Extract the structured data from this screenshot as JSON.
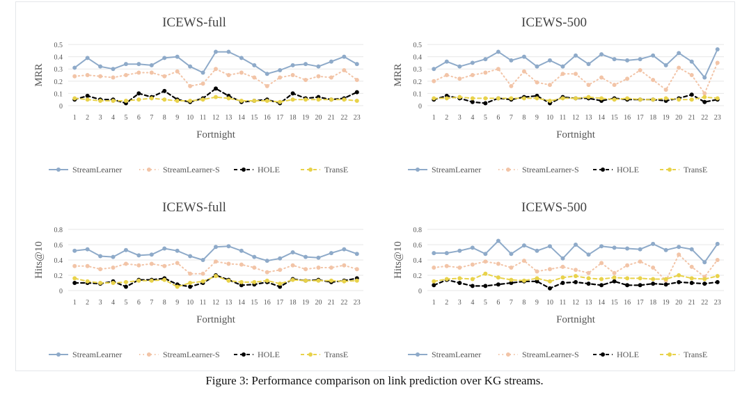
{
  "colors": {
    "streamlearner": "#8eaac9",
    "streamlearner_s": "#f2c4a7",
    "hole": "#000000",
    "transe": "#e8d24a",
    "grid": "#e7e7e7",
    "text": "#555555"
  },
  "caption": "Figure 3: Performance comparison on link prediction over KG streams.",
  "chart_data": [
    {
      "type": "line",
      "title": "ICEWS-full",
      "xlabel": "Fortnight",
      "ylabel": "MRR",
      "ylim": [
        0,
        0.5
      ],
      "yticks": [
        "0",
        "0.1",
        "0.2",
        "0.3",
        "0.4",
        "0.5"
      ],
      "categories": [
        "1",
        "2",
        "3",
        "4",
        "5",
        "6",
        "7",
        "8",
        "9",
        "10",
        "11",
        "12",
        "13",
        "14",
        "15",
        "16",
        "17",
        "18",
        "19",
        "20",
        "21",
        "22",
        "23"
      ],
      "legend_position": "bottom",
      "series": [
        {
          "name": "StreamLearner",
          "style": "solid",
          "values": [
            0.31,
            0.39,
            0.32,
            0.3,
            0.34,
            0.34,
            0.33,
            0.39,
            0.4,
            0.32,
            0.27,
            0.44,
            0.44,
            0.39,
            0.33,
            0.26,
            0.29,
            0.33,
            0.34,
            0.32,
            0.36,
            0.4,
            0.34
          ]
        },
        {
          "name": "StreamLearner-S",
          "style": "dotted",
          "values": [
            0.24,
            0.25,
            0.24,
            0.23,
            0.25,
            0.27,
            0.27,
            0.24,
            0.28,
            0.16,
            0.18,
            0.3,
            0.25,
            0.27,
            0.23,
            0.16,
            0.23,
            0.25,
            0.21,
            0.24,
            0.23,
            0.29,
            0.21
          ]
        },
        {
          "name": "HOLE",
          "style": "dashed",
          "values": [
            0.05,
            0.08,
            0.05,
            0.05,
            0.02,
            0.1,
            0.07,
            0.12,
            0.05,
            0.03,
            0.06,
            0.14,
            0.08,
            0.03,
            0.04,
            0.05,
            0.02,
            0.1,
            0.06,
            0.07,
            0.05,
            0.06,
            0.11
          ]
        },
        {
          "name": "TransE",
          "style": "dashed",
          "values": [
            0.06,
            0.05,
            0.04,
            0.04,
            0.04,
            0.05,
            0.06,
            0.05,
            0.04,
            0.04,
            0.05,
            0.07,
            0.06,
            0.04,
            0.04,
            0.04,
            0.03,
            0.05,
            0.05,
            0.05,
            0.05,
            0.05,
            0.04
          ]
        }
      ]
    },
    {
      "type": "line",
      "title": "ICEWS-500",
      "xlabel": "Fortnight",
      "ylabel": "MRR",
      "ylim": [
        0,
        0.5
      ],
      "yticks": [
        "0",
        "0.1",
        "0.2",
        "0.3",
        "0.4",
        "0.5"
      ],
      "categories": [
        "1",
        "2",
        "3",
        "4",
        "5",
        "6",
        "7",
        "8",
        "9",
        "10",
        "11",
        "12",
        "13",
        "14",
        "15",
        "16",
        "17",
        "18",
        "19",
        "20",
        "21",
        "22",
        "23"
      ],
      "legend_position": "bottom",
      "series": [
        {
          "name": "StreamLearner",
          "style": "solid",
          "values": [
            0.3,
            0.36,
            0.32,
            0.35,
            0.38,
            0.44,
            0.37,
            0.4,
            0.32,
            0.37,
            0.32,
            0.41,
            0.34,
            0.42,
            0.38,
            0.37,
            0.38,
            0.41,
            0.33,
            0.43,
            0.36,
            0.23,
            0.46
          ]
        },
        {
          "name": "StreamLearner-S",
          "style": "dotted",
          "values": [
            0.2,
            0.25,
            0.22,
            0.25,
            0.27,
            0.3,
            0.16,
            0.28,
            0.19,
            0.17,
            0.26,
            0.26,
            0.17,
            0.23,
            0.17,
            0.22,
            0.29,
            0.21,
            0.13,
            0.31,
            0.25,
            0.1,
            0.35
          ]
        },
        {
          "name": "HOLE",
          "style": "dashed",
          "values": [
            0.05,
            0.08,
            0.06,
            0.03,
            0.02,
            0.06,
            0.05,
            0.07,
            0.08,
            0.02,
            0.07,
            0.06,
            0.06,
            0.04,
            0.06,
            0.05,
            0.05,
            0.05,
            0.04,
            0.06,
            0.09,
            0.03,
            0.05
          ]
        },
        {
          "name": "TransE",
          "style": "dashed",
          "values": [
            0.06,
            0.06,
            0.07,
            0.06,
            0.06,
            0.06,
            0.06,
            0.06,
            0.06,
            0.04,
            0.06,
            0.06,
            0.07,
            0.06,
            0.05,
            0.06,
            0.05,
            0.05,
            0.06,
            0.05,
            0.05,
            0.07,
            0.06
          ]
        }
      ]
    },
    {
      "type": "line",
      "title": "ICEWS-full",
      "xlabel": "Fortnight",
      "ylabel": "Hits@10",
      "ylim": [
        0,
        0.8
      ],
      "yticks": [
        "0",
        "0.2",
        "0.4",
        "0.6",
        "0.8"
      ],
      "categories": [
        "1",
        "2",
        "3",
        "4",
        "5",
        "6",
        "7",
        "8",
        "9",
        "10",
        "11",
        "12",
        "13",
        "14",
        "15",
        "16",
        "17",
        "18",
        "19",
        "20",
        "21",
        "22",
        "23"
      ],
      "legend_position": "bottom",
      "series": [
        {
          "name": "StreamLearner",
          "style": "solid",
          "values": [
            0.52,
            0.54,
            0.45,
            0.44,
            0.53,
            0.46,
            0.47,
            0.55,
            0.52,
            0.45,
            0.4,
            0.57,
            0.58,
            0.52,
            0.44,
            0.39,
            0.42,
            0.5,
            0.44,
            0.43,
            0.49,
            0.54,
            0.48
          ]
        },
        {
          "name": "StreamLearner-S",
          "style": "dotted",
          "values": [
            0.32,
            0.32,
            0.28,
            0.3,
            0.35,
            0.33,
            0.35,
            0.32,
            0.36,
            0.22,
            0.22,
            0.38,
            0.35,
            0.34,
            0.3,
            0.24,
            0.27,
            0.33,
            0.28,
            0.3,
            0.3,
            0.33,
            0.28
          ]
        },
        {
          "name": "HOLE",
          "style": "dashed",
          "values": [
            0.1,
            0.1,
            0.09,
            0.12,
            0.05,
            0.14,
            0.14,
            0.16,
            0.08,
            0.05,
            0.1,
            0.2,
            0.14,
            0.07,
            0.08,
            0.11,
            0.05,
            0.15,
            0.13,
            0.14,
            0.11,
            0.13,
            0.16
          ]
        },
        {
          "name": "TransE",
          "style": "dashed",
          "values": [
            0.16,
            0.12,
            0.1,
            0.1,
            0.11,
            0.13,
            0.13,
            0.14,
            0.05,
            0.1,
            0.12,
            0.19,
            0.13,
            0.11,
            0.11,
            0.13,
            0.09,
            0.14,
            0.13,
            0.13,
            0.13,
            0.12,
            0.13
          ]
        }
      ]
    },
    {
      "type": "line",
      "title": "ICEWS-500",
      "xlabel": "Fortnight",
      "ylabel": "Hits@10",
      "ylim": [
        0,
        0.8
      ],
      "yticks": [
        "0",
        "0.2",
        "0.4",
        "0.6",
        "0.8"
      ],
      "categories": [
        "1",
        "2",
        "3",
        "4",
        "5",
        "6",
        "7",
        "8",
        "9",
        "10",
        "11",
        "12",
        "13",
        "14",
        "15",
        "16",
        "17",
        "18",
        "19",
        "20",
        "21",
        "22",
        "23"
      ],
      "legend_position": "bottom",
      "series": [
        {
          "name": "StreamLearner",
          "style": "solid",
          "values": [
            0.49,
            0.49,
            0.52,
            0.56,
            0.48,
            0.65,
            0.48,
            0.59,
            0.52,
            0.58,
            0.42,
            0.6,
            0.47,
            0.58,
            0.56,
            0.55,
            0.54,
            0.61,
            0.53,
            0.57,
            0.54,
            0.37,
            0.61
          ]
        },
        {
          "name": "StreamLearner-S",
          "style": "dotted",
          "values": [
            0.3,
            0.32,
            0.3,
            0.34,
            0.38,
            0.35,
            0.3,
            0.39,
            0.25,
            0.28,
            0.31,
            0.27,
            0.23,
            0.36,
            0.23,
            0.33,
            0.38,
            0.3,
            0.13,
            0.47,
            0.31,
            0.18,
            0.4
          ]
        },
        {
          "name": "HOLE",
          "style": "dashed",
          "values": [
            0.07,
            0.14,
            0.1,
            0.06,
            0.06,
            0.08,
            0.1,
            0.12,
            0.12,
            0.03,
            0.1,
            0.11,
            0.09,
            0.07,
            0.12,
            0.07,
            0.07,
            0.09,
            0.08,
            0.11,
            0.1,
            0.09,
            0.11
          ]
        },
        {
          "name": "TransE",
          "style": "dashed",
          "values": [
            0.12,
            0.15,
            0.16,
            0.15,
            0.22,
            0.17,
            0.14,
            0.13,
            0.16,
            0.12,
            0.17,
            0.19,
            0.16,
            0.15,
            0.17,
            0.16,
            0.16,
            0.15,
            0.15,
            0.2,
            0.16,
            0.15,
            0.19
          ]
        }
      ]
    }
  ]
}
